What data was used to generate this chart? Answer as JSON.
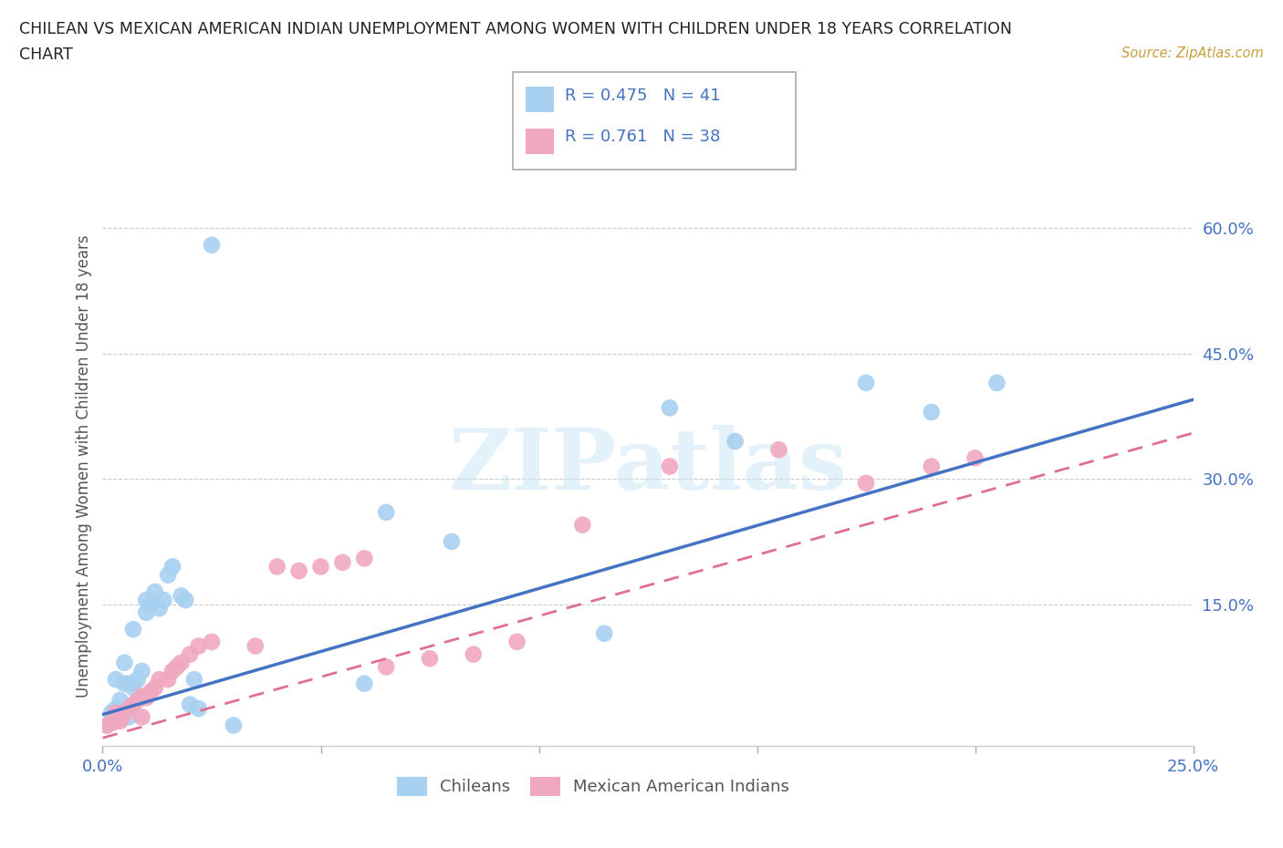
{
  "title_line1": "CHILEAN VS MEXICAN AMERICAN INDIAN UNEMPLOYMENT AMONG WOMEN WITH CHILDREN UNDER 18 YEARS CORRELATION",
  "title_line2": "CHART",
  "source": "Source: ZipAtlas.com",
  "ylabel": "Unemployment Among Women with Children Under 18 years",
  "xlim": [
    0.0,
    0.25
  ],
  "ylim": [
    -0.02,
    0.65
  ],
  "r_chilean": 0.475,
  "n_chilean": 41,
  "r_mexican": 0.761,
  "n_mexican": 38,
  "blue_color": "#A8D0F0",
  "pink_color": "#F0A8C0",
  "blue_line_color": "#4472C4",
  "pink_line_color": "#E07090",
  "legend_label_1": "Chileans",
  "legend_label_2": "Mexican American Indians",
  "watermark": "ZIPatlas",
  "blue_line_x0": 0.0,
  "blue_line_y0": 0.018,
  "blue_line_x1": 0.25,
  "blue_line_y1": 0.395,
  "pink_line_x0": 0.0,
  "pink_line_y0": -0.01,
  "pink_line_x1": 0.25,
  "pink_line_y1": 0.355,
  "chilean_x": [
    0.001,
    0.002,
    0.002,
    0.003,
    0.003,
    0.003,
    0.004,
    0.004,
    0.005,
    0.005,
    0.005,
    0.006,
    0.006,
    0.007,
    0.007,
    0.008,
    0.009,
    0.01,
    0.01,
    0.011,
    0.012,
    0.013,
    0.014,
    0.015,
    0.016,
    0.018,
    0.019,
    0.02,
    0.021,
    0.022,
    0.03,
    0.06,
    0.065,
    0.08,
    0.115,
    0.13,
    0.145,
    0.175,
    0.19,
    0.205,
    0.025
  ],
  "chilean_y": [
    0.005,
    0.008,
    0.02,
    0.01,
    0.025,
    0.06,
    0.015,
    0.035,
    0.02,
    0.055,
    0.08,
    0.015,
    0.055,
    0.05,
    0.12,
    0.06,
    0.07,
    0.14,
    0.155,
    0.15,
    0.165,
    0.145,
    0.155,
    0.185,
    0.195,
    0.16,
    0.155,
    0.03,
    0.06,
    0.025,
    0.005,
    0.055,
    0.26,
    0.225,
    0.115,
    0.385,
    0.345,
    0.415,
    0.38,
    0.415,
    0.58
  ],
  "mexican_x": [
    0.001,
    0.002,
    0.003,
    0.003,
    0.004,
    0.005,
    0.006,
    0.007,
    0.008,
    0.009,
    0.009,
    0.01,
    0.011,
    0.012,
    0.013,
    0.015,
    0.016,
    0.017,
    0.018,
    0.02,
    0.022,
    0.025,
    0.035,
    0.04,
    0.045,
    0.05,
    0.055,
    0.06,
    0.065,
    0.075,
    0.085,
    0.095,
    0.11,
    0.13,
    0.155,
    0.175,
    0.19,
    0.2
  ],
  "mexican_y": [
    0.005,
    0.008,
    0.01,
    0.02,
    0.01,
    0.018,
    0.025,
    0.03,
    0.035,
    0.015,
    0.04,
    0.038,
    0.045,
    0.05,
    0.06,
    0.06,
    0.07,
    0.075,
    0.08,
    0.09,
    0.1,
    0.105,
    0.1,
    0.195,
    0.19,
    0.195,
    0.2,
    0.205,
    0.075,
    0.085,
    0.09,
    0.105,
    0.245,
    0.315,
    0.335,
    0.295,
    0.315,
    0.325
  ]
}
